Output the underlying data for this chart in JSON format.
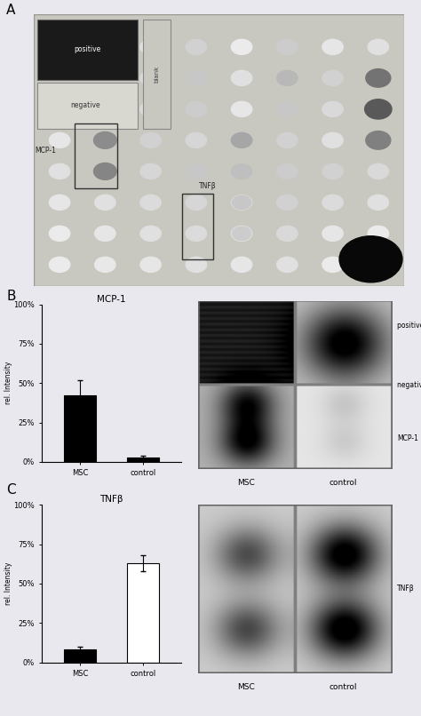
{
  "bg_color": "#e8e8ee",
  "section_A_label": "A",
  "section_B_label": "B",
  "section_C_label": "C",
  "bar_B_values": [
    0.42,
    0.03
  ],
  "bar_B_errors": [
    0.1,
    0.01
  ],
  "bar_B_fills": [
    "black",
    "black"
  ],
  "bar_C_values": [
    0.08,
    0.63
  ],
  "bar_C_errors": [
    0.02,
    0.05
  ],
  "bar_C_fills": [
    "black",
    "white"
  ],
  "bar_labels": [
    "MSC",
    "control"
  ],
  "bar_title_B": "MCP-1",
  "bar_title_C": "TNFβ",
  "yticks": [
    0.0,
    0.25,
    0.5,
    0.75,
    1.0
  ],
  "ytick_labels": [
    "0%",
    "25%",
    "50%",
    "75%",
    "100%"
  ],
  "ylabel": "rel. Intensity",
  "pos_control_label": "positive control",
  "neg_control_label": "negative control",
  "mcp1_panel_label": "MCP-1",
  "tnfb_panel_label": "TNFβ"
}
